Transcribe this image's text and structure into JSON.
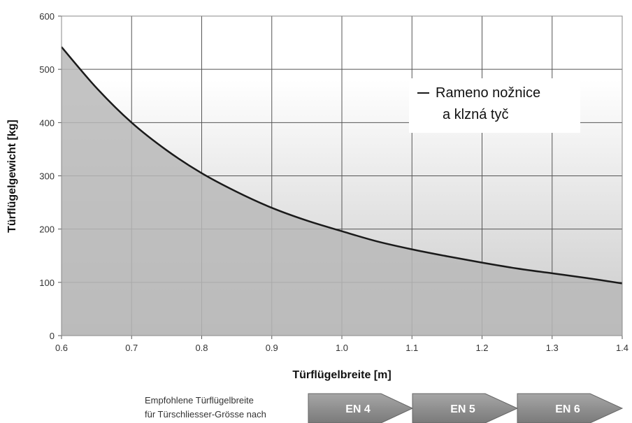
{
  "chart_data": {
    "type": "area",
    "xlabel": "Türflügelbreite [m]",
    "ylabel": "Türflügelgewicht [kg]",
    "xlim": [
      0.6,
      1.4
    ],
    "ylim": [
      0,
      600
    ],
    "x_ticks": [
      "0.6",
      "0.7",
      "0.8",
      "0.9",
      "1.0",
      "1.1",
      "1.2",
      "1.3",
      "1.4"
    ],
    "y_ticks": [
      "0",
      "100",
      "200",
      "300",
      "400",
      "500",
      "600"
    ],
    "grid": true,
    "legend_position": "top-right",
    "series": [
      {
        "name": "Rameno nožnice a klzná tyč",
        "x": [
          0.6,
          0.65,
          0.7,
          0.75,
          0.8,
          0.85,
          0.9,
          0.95,
          1.0,
          1.05,
          1.1,
          1.15,
          1.2,
          1.25,
          1.3,
          1.35,
          1.4
        ],
        "y": [
          542,
          465,
          400,
          348,
          305,
          270,
          240,
          216,
          196,
          177,
          162,
          149,
          137,
          126,
          117,
          108,
          98
        ]
      }
    ]
  },
  "legend": {
    "line1": "Rameno nožnice",
    "line2": "a klzná tyč"
  },
  "recommendation": {
    "line1": "Empfohlene Türflügelbreite",
    "line2": "für Türschliesser-Grösse nach",
    "sizes": [
      "EN 4",
      "EN 5",
      "EN 6"
    ]
  },
  "colors": {
    "curve": "#1a1a1a",
    "area_fill": "#b8b8b8",
    "grid": "#555555",
    "arrow_fill": "#8a8a8a"
  }
}
